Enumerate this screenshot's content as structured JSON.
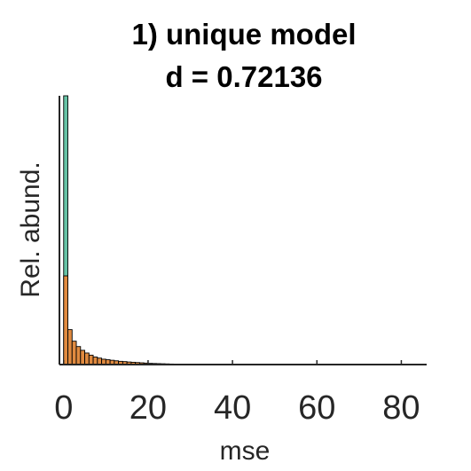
{
  "chart_data": {
    "type": "bar",
    "title_lines": [
      "1) unique model",
      "d = 0.72136"
    ],
    "xlabel": "mse",
    "ylabel": "Rel. abund.",
    "xlim": [
      -1,
      86
    ],
    "ylim": [
      0,
      1
    ],
    "xticks": [
      0,
      20,
      40,
      60,
      80
    ],
    "grid": false,
    "bin_width": 1,
    "series": [
      {
        "color": "#66c2a5",
        "bins": [
          {
            "x": 0.5,
            "y": 1.0
          }
        ]
      },
      {
        "color": "#e08a3f",
        "bins": [
          {
            "x": 0.5,
            "y": 0.33
          },
          {
            "x": 1.5,
            "y": 0.13
          },
          {
            "x": 2.5,
            "y": 0.087
          },
          {
            "x": 3.5,
            "y": 0.067
          },
          {
            "x": 4.5,
            "y": 0.053
          },
          {
            "x": 5.5,
            "y": 0.043
          },
          {
            "x": 6.5,
            "y": 0.035
          },
          {
            "x": 7.5,
            "y": 0.028
          },
          {
            "x": 8.5,
            "y": 0.024
          },
          {
            "x": 9.5,
            "y": 0.02
          },
          {
            "x": 10.5,
            "y": 0.018
          },
          {
            "x": 11.5,
            "y": 0.016
          },
          {
            "x": 12.5,
            "y": 0.014
          },
          {
            "x": 13.5,
            "y": 0.012
          },
          {
            "x": 14.5,
            "y": 0.011
          },
          {
            "x": 15.5,
            "y": 0.0095
          },
          {
            "x": 16.5,
            "y": 0.0085
          },
          {
            "x": 17.5,
            "y": 0.0075
          },
          {
            "x": 18.5,
            "y": 0.0065
          },
          {
            "x": 19.5,
            "y": 0.0055
          },
          {
            "x": 20.5,
            "y": 0.0045
          },
          {
            "x": 21.5,
            "y": 0.004
          },
          {
            "x": 22.5,
            "y": 0.0035
          },
          {
            "x": 23.5,
            "y": 0.003
          },
          {
            "x": 24.5,
            "y": 0.0025
          },
          {
            "x": 25.5,
            "y": 0.002
          },
          {
            "x": 26.5,
            "y": 0.0018
          },
          {
            "x": 27.5,
            "y": 0.0015
          },
          {
            "x": 28.5,
            "y": 0.0012
          },
          {
            "x": 29.5,
            "y": 0.001
          },
          {
            "x": 30.5,
            "y": 0.0008
          },
          {
            "x": 31.5,
            "y": 0.0007
          },
          {
            "x": 32.5,
            "y": 0.0006
          },
          {
            "x": 33.5,
            "y": 0.0005
          },
          {
            "x": 34.5,
            "y": 0.0004
          }
        ]
      }
    ]
  }
}
